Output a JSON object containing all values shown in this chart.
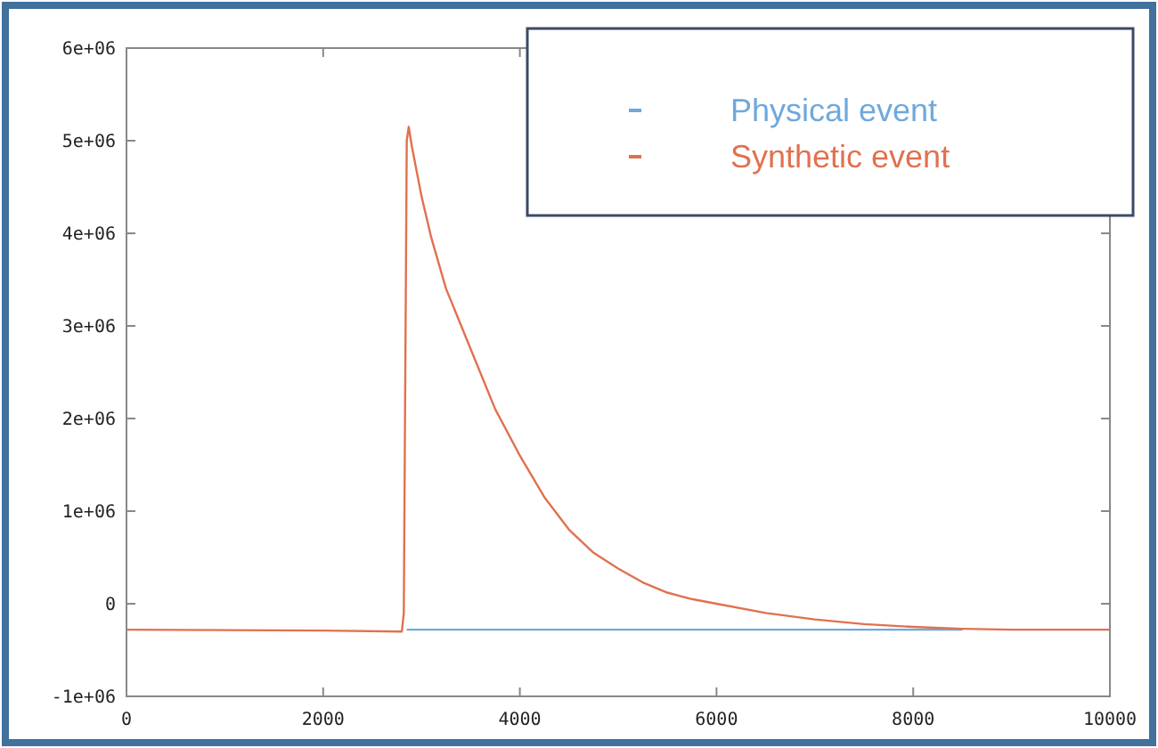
{
  "chart_data": {
    "type": "line",
    "xlim": [
      0,
      10000
    ],
    "xticks": [
      0,
      2000,
      4000,
      6000,
      8000,
      10000
    ],
    "ylim": [
      -1000000,
      6000000
    ],
    "yticks": [
      {
        "value": -1000000,
        "label": "-1e+06"
      },
      0,
      {
        "value": 1000000,
        "label": "1e+06"
      },
      {
        "value": 2000000,
        "label": "2e+06"
      },
      {
        "value": 3000000,
        "label": "3e+06"
      },
      {
        "value": 4000000,
        "label": "4e+06"
      },
      {
        "value": 5000000,
        "label": "5e+06"
      },
      {
        "value": 6000000,
        "label": "6e+06"
      }
    ],
    "grid": false,
    "legend": "top right",
    "series": [
      {
        "name": "Physical event",
        "color": "#6fa8dc",
        "x": [
          2850,
          4000,
          6000,
          8000,
          8500
        ],
        "values": [
          -280000,
          -280000,
          -280000,
          -280000,
          -280000
        ]
      },
      {
        "name": "Synthetic event",
        "color": "#e0714f",
        "x": [
          0,
          2000,
          2800,
          2820,
          2850,
          2870,
          2900,
          3000,
          3100,
          3250,
          3500,
          3750,
          4000,
          4250,
          4500,
          4750,
          5000,
          5250,
          5500,
          5750,
          6000,
          6500,
          7000,
          7500,
          8000,
          8500,
          9000,
          10000
        ],
        "values": [
          -280000,
          -290000,
          -300000,
          -100000,
          5000000,
          5150000,
          4950000,
          4400000,
          3950000,
          3400000,
          2750000,
          2100000,
          1600000,
          1150000,
          800000,
          550000,
          380000,
          230000,
          120000,
          50000,
          0,
          -100000,
          -170000,
          -220000,
          -250000,
          -270000,
          -280000,
          -280000
        ]
      }
    ]
  }
}
